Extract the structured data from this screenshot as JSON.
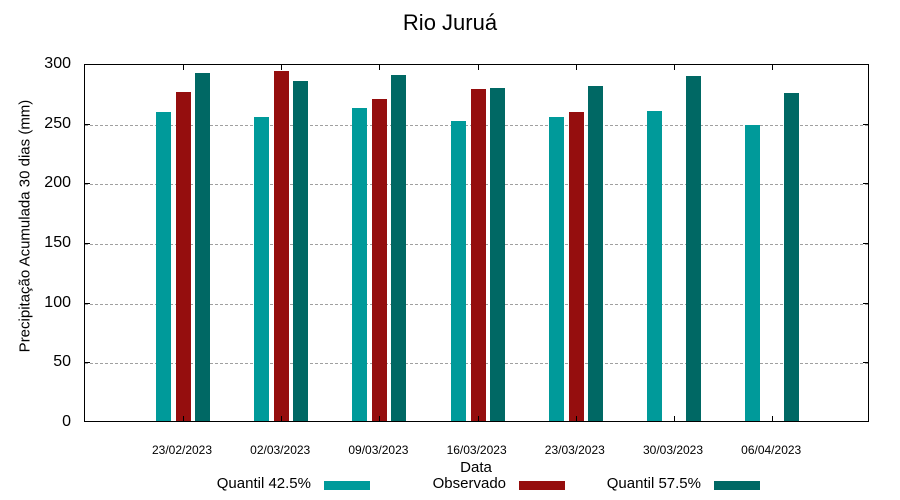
{
  "chart_data": {
    "type": "bar",
    "title": "Rio Juruá",
    "xlabel": "Data",
    "ylabel": "Precipitação Acumulada 30 dias (mm)",
    "ylim": [
      0,
      300
    ],
    "yticks": [
      0,
      50,
      100,
      150,
      200,
      250,
      300
    ],
    "grid": true,
    "legend_position": "bottom",
    "categories": [
      "23/02/2023",
      "02/03/2023",
      "09/03/2023",
      "16/03/2023",
      "23/03/2023",
      "30/03/2023",
      "06/04/2023"
    ],
    "series": [
      {
        "name": "Quantil 42.5%",
        "color": "#009a9a",
        "values": [
          259,
          255,
          262,
          251,
          255,
          260,
          248
        ]
      },
      {
        "name": "Observado",
        "color": "#950e0e",
        "values": [
          276,
          293,
          270,
          278,
          259,
          null,
          null
        ]
      },
      {
        "name": "Quantil 57.5%",
        "color": "#006864",
        "values": [
          292,
          285,
          290,
          279,
          281,
          289,
          275
        ]
      }
    ]
  }
}
